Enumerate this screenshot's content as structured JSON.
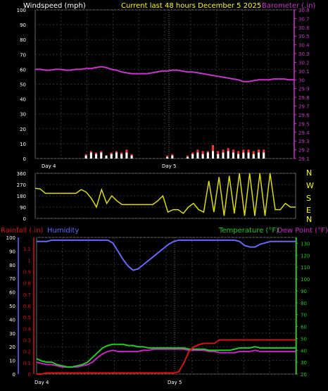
{
  "header": {
    "left_title": "Windspeed (mph)",
    "center_title": "Current last 48 hours December 5 2025",
    "right_title": "Barometer (.in)"
  },
  "bottom_header": {
    "rain_title": "Rainfall (.in)",
    "humidity_title": "Humidity",
    "temp_title": "Temperature (°F)",
    "dew_title": "Dew Point (°F)"
  },
  "day_labels": [
    "Day 4",
    "Day 5"
  ],
  "compass": [
    "N",
    "W",
    "S",
    "E",
    "N"
  ],
  "colors": {
    "background": "#000000",
    "barometer": "#cc33cc",
    "wind": "#ffffff",
    "gust": "#ff3333",
    "direction": "#dddd00",
    "compass_text": "#ffff00",
    "rain": "#dd1111",
    "humidity": "#6666ff",
    "temperature": "#22cc22",
    "dewpoint": "#cc22cc",
    "grid": "#333333"
  },
  "chart_data": [
    {
      "type": "line",
      "title": "Current last 48 hours December 5 2025",
      "ylabel_left": "Windspeed (mph)",
      "ylabel_right": "Barometer (.in)",
      "ylim_left": [
        0,
        100
      ],
      "ylim_right": [
        29.1,
        30.8
      ],
      "yticks_left": [
        0,
        10,
        20,
        30,
        40,
        50,
        60,
        70,
        80,
        90,
        100
      ],
      "yticks_right": [
        "29.1",
        "29.2",
        "29.3",
        "29.4",
        "29.5",
        "29.6",
        "29.7",
        "29.8",
        "29.9",
        "30",
        "30.1",
        "30.2",
        "30.3",
        "30.4",
        "30.5",
        "30.6",
        "30.7",
        "30.8"
      ],
      "x_labels": [
        "Day 4",
        "Day 5"
      ],
      "grid": true,
      "series": [
        {
          "name": "Barometer (.in)",
          "axis": "right",
          "values": [
            30.12,
            30.12,
            30.11,
            30.11,
            30.12,
            30.12,
            30.11,
            30.11,
            30.12,
            30.12,
            30.13,
            30.13,
            30.14,
            30.15,
            30.14,
            30.12,
            30.11,
            30.09,
            30.08,
            30.07,
            30.07,
            30.07,
            30.07,
            30.08,
            30.09,
            30.1,
            30.1,
            30.11,
            30.11,
            30.1,
            30.09,
            30.09,
            30.08,
            30.07,
            30.06,
            30.05,
            30.04,
            30.03,
            30.02,
            30.01,
            30.0,
            29.98,
            29.98,
            29.99,
            30.0,
            30.0,
            30.0,
            30.01,
            30.01,
            30.01,
            30.0,
            30.0
          ]
        },
        {
          "name": "Windspeed (mph)",
          "axis": "left",
          "values": [
            0,
            0,
            0,
            0,
            0,
            0,
            0,
            0,
            0,
            0,
            2,
            4,
            3,
            4,
            2,
            3,
            4,
            3,
            4,
            2,
            0,
            0,
            0,
            0,
            0,
            0,
            1,
            2,
            0,
            0,
            1,
            3,
            4,
            3,
            4,
            5,
            3,
            4,
            5,
            4,
            3,
            4,
            4,
            3,
            4,
            4,
            0,
            0,
            0,
            0,
            0,
            0
          ]
        },
        {
          "name": "Gust",
          "axis": "left",
          "values": [
            0,
            0,
            0,
            0,
            0,
            0,
            0,
            0,
            0,
            0,
            3,
            5,
            4,
            5,
            2,
            4,
            5,
            4,
            6,
            3,
            0,
            0,
            0,
            0,
            0,
            0,
            2,
            3,
            0,
            0,
            2,
            4,
            6,
            5,
            5,
            9,
            5,
            6,
            7,
            6,
            5,
            6,
            6,
            5,
            6,
            6,
            0,
            0,
            0,
            0,
            0,
            0
          ]
        }
      ]
    },
    {
      "type": "line",
      "title": "",
      "ylim": [
        0,
        360
      ],
      "yticks": [
        0,
        90,
        180,
        270,
        360
      ],
      "x_labels": [],
      "grid": true,
      "series": [
        {
          "name": "Wind Direction",
          "values": [
            240,
            235,
            200,
            200,
            200,
            200,
            200,
            200,
            200,
            230,
            210,
            160,
            90,
            230,
            120,
            180,
            140,
            110,
            110,
            110,
            110,
            110,
            110,
            110,
            140,
            180,
            50,
            70,
            70,
            40,
            90,
            120,
            70,
            50,
            300,
            50,
            330,
            20,
            340,
            40,
            360,
            20,
            360,
            20,
            360,
            20,
            360,
            70,
            70,
            120,
            90,
            90
          ]
        }
      ]
    },
    {
      "type": "line",
      "title": "",
      "ylabel_left_outer": "Rainfall (.in)",
      "ylabel_left_inner": "Humidity",
      "ylabel_right": "Temperature (°F)",
      "ylim_humidity": [
        0,
        100
      ],
      "ylim_rain": [
        0,
        1.2
      ],
      "ylim_temp": [
        20,
        135
      ],
      "yticks_humidity": [
        0,
        10,
        20,
        30,
        40,
        50,
        60,
        70,
        80,
        90,
        100
      ],
      "yticks_rain": [
        "0",
        "0.1",
        "0.2",
        "0.3",
        "0.4",
        "0.5",
        "0.6",
        "0.7",
        "0.8",
        "0.9",
        "1",
        "1.1"
      ],
      "yticks_temp": [
        20,
        30,
        40,
        50,
        60,
        70,
        80,
        90,
        100,
        110,
        120,
        130
      ],
      "x_labels": [
        "Day 4",
        "Day 5"
      ],
      "grid": true,
      "series": [
        {
          "name": "Humidity",
          "axis": "humidity",
          "values": [
            97,
            97,
            97,
            98,
            98,
            98,
            98,
            98,
            98,
            98,
            98,
            98,
            98,
            98,
            98,
            96,
            90,
            84,
            79,
            76,
            77,
            80,
            83,
            86,
            89,
            92,
            95,
            97,
            98,
            98,
            98,
            98,
            98,
            98,
            98,
            98,
            98,
            98,
            98,
            98,
            97,
            94,
            93,
            93,
            95,
            96,
            97,
            97,
            97,
            97,
            97,
            97
          ]
        },
        {
          "name": "Rainfall (.in)",
          "axis": "rain",
          "values": [
            0.0,
            0.0,
            0.01,
            0.01,
            0.01,
            0.01,
            0.01,
            0.01,
            0.01,
            0.01,
            0.01,
            0.01,
            0.01,
            0.01,
            0.01,
            0.01,
            0.01,
            0.01,
            0.01,
            0.01,
            0.01,
            0.01,
            0.01,
            0.01,
            0.01,
            0.01,
            0.01,
            0.01,
            0.02,
            0.1,
            0.2,
            0.24,
            0.26,
            0.27,
            0.27,
            0.27,
            0.3,
            0.3,
            0.3,
            0.3,
            0.3,
            0.3,
            0.3,
            0.3,
            0.3,
            0.3,
            0.3,
            0.3,
            0.3,
            0.3,
            0.3,
            0.3
          ]
        },
        {
          "name": "Temperature (°F)",
          "axis": "temp",
          "values": [
            33,
            31,
            30,
            30,
            28,
            27,
            26,
            26,
            27,
            28,
            30,
            34,
            38,
            42,
            44,
            45,
            45,
            45,
            44,
            44,
            43,
            43,
            42,
            42,
            42,
            42,
            42,
            42,
            42,
            42,
            41,
            41,
            41,
            41,
            40,
            40,
            40,
            40,
            40,
            41,
            42,
            42,
            42,
            43,
            42,
            42,
            42,
            42,
            42,
            42,
            42,
            42
          ]
        },
        {
          "name": "Dew Point (°F)",
          "axis": "temp",
          "values": [
            30,
            29,
            28,
            28,
            27,
            26,
            26,
            26,
            26,
            27,
            28,
            30,
            34,
            37,
            39,
            40,
            39,
            39,
            39,
            39,
            39,
            40,
            40,
            41,
            41,
            41,
            41,
            41,
            41,
            41,
            40,
            40,
            40,
            40,
            39,
            39,
            38,
            38,
            38,
            38,
            39,
            39,
            39,
            40,
            39,
            39,
            39,
            39,
            39,
            39,
            39,
            39
          ]
        }
      ]
    }
  ]
}
